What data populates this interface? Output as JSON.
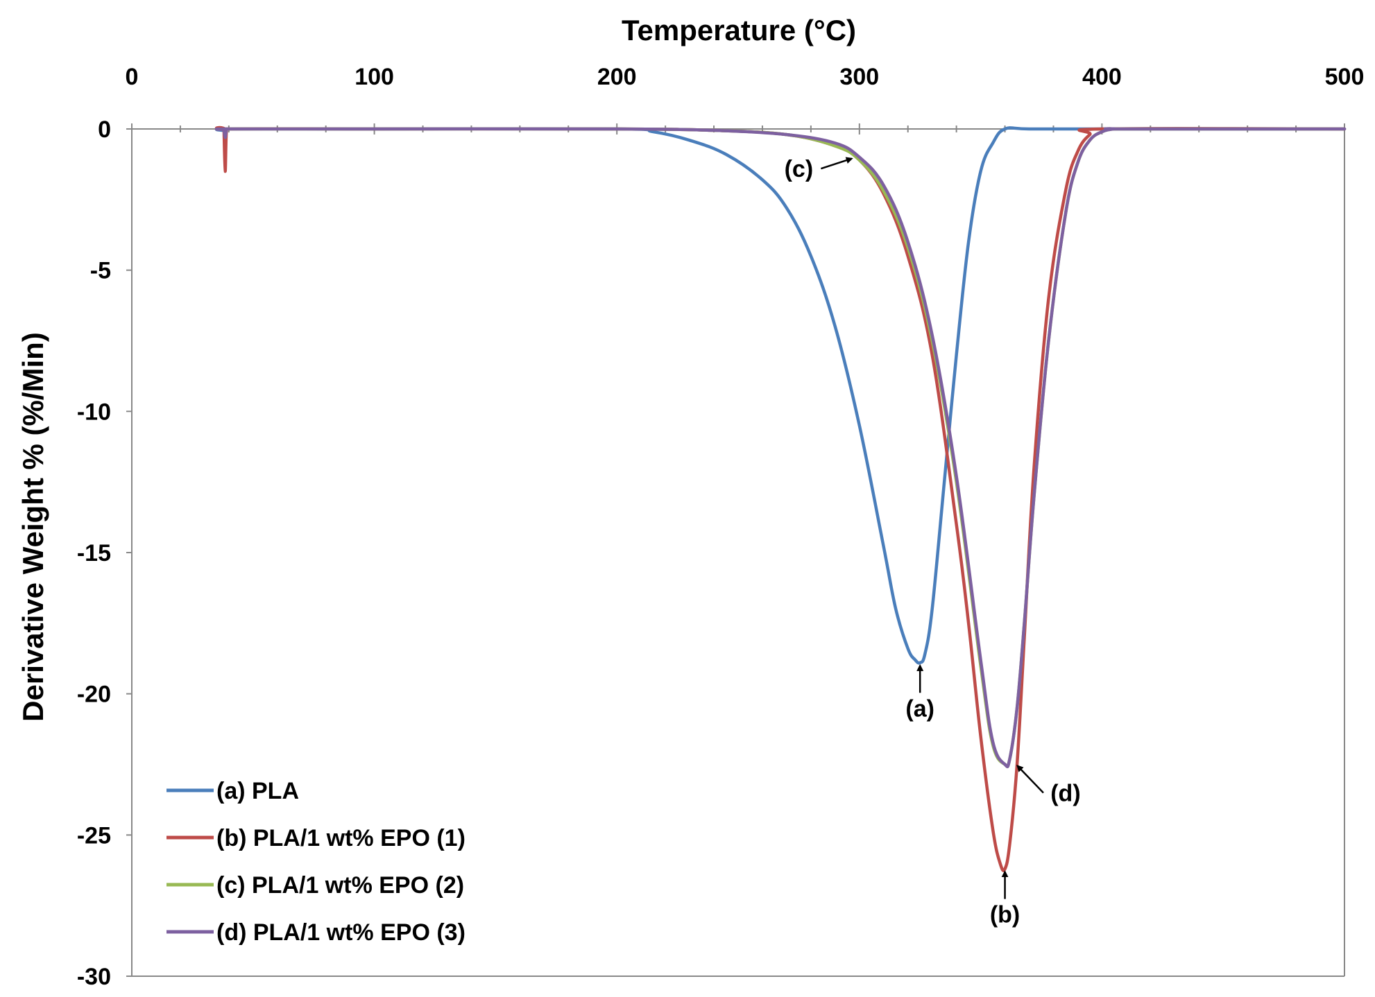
{
  "chart_data": {
    "type": "line",
    "title": "",
    "xlabel": "Temperature (°C)",
    "ylabel": "Derivative Weight % (%/Min)",
    "xlim": [
      0,
      500
    ],
    "ylim": [
      -30,
      0
    ],
    "x_ticks": [
      0,
      100,
      200,
      300,
      400,
      500
    ],
    "x_tick_labels": [
      "0",
      "100",
      "200",
      "300",
      "400",
      "500"
    ],
    "y_ticks": [
      0,
      -5,
      -10,
      -15,
      -20,
      -25,
      -30
    ],
    "y_tick_labels": [
      "0",
      "-5",
      "-10",
      "-15",
      "-20",
      "-25",
      "-30"
    ],
    "x_axis_position": "top",
    "grid": false,
    "legend_position": "bottom-left",
    "series": [
      {
        "name": "(a) PLA",
        "color": "#4a7ebb",
        "x": [
          38,
          38.5,
          39,
          40,
          100,
          200,
          215,
          230,
          245,
          260,
          270,
          280,
          290,
          300,
          310,
          315,
          320,
          323,
          325,
          327,
          330,
          335,
          340,
          345,
          350,
          355,
          360,
          370,
          400,
          500
        ],
        "y": [
          0,
          -0.4,
          -0.1,
          0,
          0,
          0,
          -0.1,
          -0.4,
          -0.9,
          -1.8,
          -2.8,
          -4.5,
          -7,
          -10.5,
          -14.8,
          -17,
          -18.4,
          -18.8,
          -18.9,
          -18.6,
          -17,
          -12.5,
          -8,
          -4,
          -1.5,
          -0.5,
          0,
          0,
          0,
          0
        ]
      },
      {
        "name": "(b) PLA/1 wt% EPO (1)",
        "color": "#be4b48",
        "x": [
          38,
          38.5,
          39,
          40,
          100,
          200,
          240,
          270,
          290,
          300,
          310,
          320,
          330,
          340,
          345,
          350,
          355,
          358,
          360,
          362,
          365,
          368,
          372,
          378,
          385,
          390,
          395,
          400,
          500
        ],
        "y": [
          0,
          -1.5,
          -0.1,
          0,
          0,
          0,
          -0.05,
          -0.2,
          -0.6,
          -1.1,
          -2.3,
          -4.5,
          -8,
          -14,
          -17.5,
          -21.5,
          -24.8,
          -26,
          -26.2,
          -25.3,
          -22.5,
          -18,
          -12,
          -6,
          -2.2,
          -0.8,
          -0.2,
          0,
          0
        ]
      },
      {
        "name": "(c) PLA/1 wt% EPO (2)",
        "color": "#98b954",
        "x": [
          40,
          100,
          200,
          240,
          270,
          290,
          300,
          310,
          320,
          330,
          340,
          350,
          355,
          360,
          362,
          365,
          368,
          372,
          378,
          385,
          390,
          395,
          400,
          405,
          410,
          500
        ],
        "y": [
          0,
          0,
          0,
          -0.05,
          -0.2,
          -0.6,
          -1.1,
          -2.2,
          -4.2,
          -7.5,
          -12.5,
          -19,
          -21.8,
          -22.5,
          -22.3,
          -20.5,
          -17.5,
          -13,
          -7.5,
          -3,
          -1.2,
          -0.4,
          -0.1,
          0,
          0,
          0
        ]
      },
      {
        "name": "(d) PLA/1 wt% EPO (3)",
        "color": "#7d60a0",
        "x": [
          38,
          38.5,
          39,
          40,
          100,
          200,
          240,
          270,
          290,
          300,
          310,
          320,
          330,
          340,
          350,
          355,
          360,
          362,
          365,
          368,
          372,
          378,
          385,
          390,
          395,
          400,
          405,
          410,
          500
        ],
        "y": [
          0,
          -0.3,
          -0.05,
          0,
          0,
          0,
          -0.05,
          -0.2,
          -0.5,
          -1,
          -2,
          -4,
          -7.3,
          -12.3,
          -18.8,
          -21.7,
          -22.5,
          -22.3,
          -20.5,
          -17.5,
          -13,
          -7.5,
          -3,
          -1.2,
          -0.4,
          -0.1,
          0,
          0,
          0
        ]
      }
    ],
    "annotations": [
      {
        "label": "(a)",
        "target_x": 325,
        "target_y": -18.9,
        "text_x": 325,
        "text_y": -20.8
      },
      {
        "label": "(b)",
        "target_x": 360,
        "target_y": -26.2,
        "text_x": 360,
        "text_y": -28.1
      },
      {
        "label": "(c)",
        "target_x": 298,
        "target_y": -1.0,
        "text_x": 275,
        "text_y": -1.7
      },
      {
        "label": "(d)",
        "target_x": 364,
        "target_y": -22.5,
        "text_x": 385,
        "text_y": -23.8
      }
    ]
  }
}
